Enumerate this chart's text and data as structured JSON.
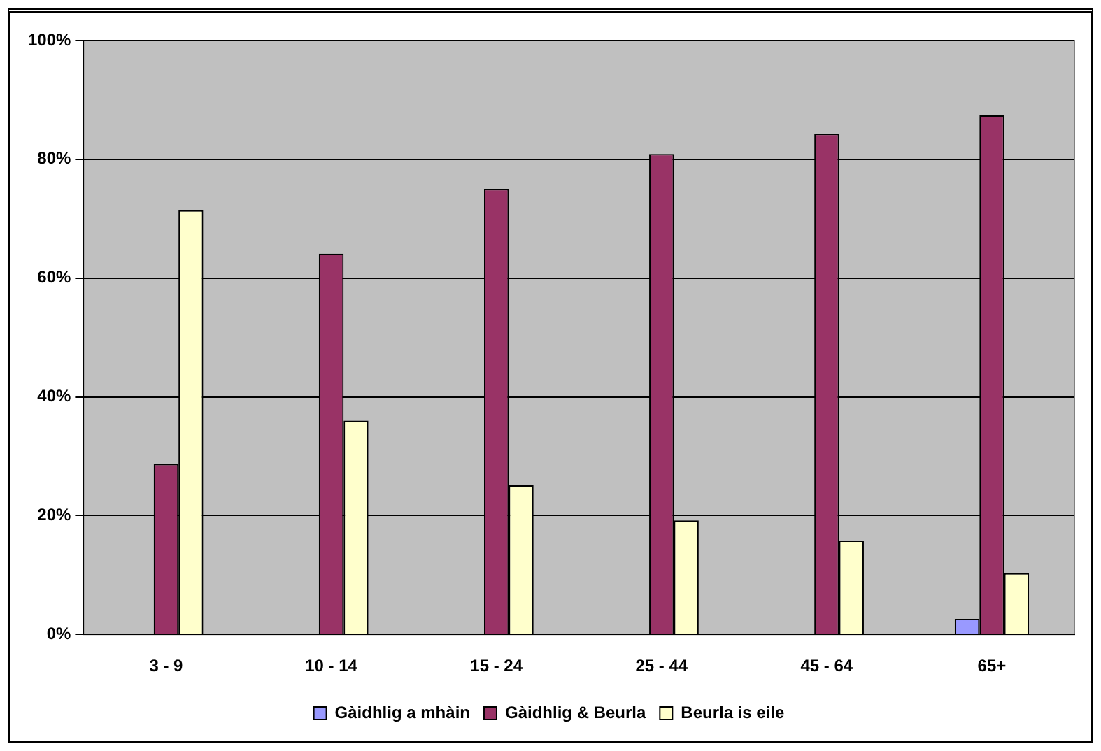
{
  "chart_data": {
    "type": "bar",
    "categories": [
      "3 - 9",
      "10 - 14",
      "15 - 24",
      "25 - 44",
      "45 - 64",
      "65+"
    ],
    "series": [
      {
        "name": "Gàidhlig a mhàin",
        "color": "#9999ff",
        "values": [
          0,
          0,
          0,
          0,
          0,
          2.6
        ]
      },
      {
        "name": "Gàidhlig & Beurla",
        "color": "#993366",
        "values": [
          28.7,
          64.1,
          75.0,
          80.9,
          84.3,
          87.4
        ]
      },
      {
        "name": "Beurla is eile",
        "color": "#ffffcc",
        "values": [
          71.4,
          36.0,
          25.1,
          19.2,
          15.8,
          10.3
        ]
      }
    ],
    "ylim": [
      0,
      100
    ],
    "yticks": [
      {
        "value": 0,
        "label": "0%"
      },
      {
        "value": 20,
        "label": "20%"
      },
      {
        "value": 40,
        "label": "40%"
      },
      {
        "value": 60,
        "label": "60%"
      },
      {
        "value": 80,
        "label": "80%"
      },
      {
        "value": 100,
        "label": "100%"
      }
    ],
    "grid": "y",
    "legend": "bottom"
  }
}
